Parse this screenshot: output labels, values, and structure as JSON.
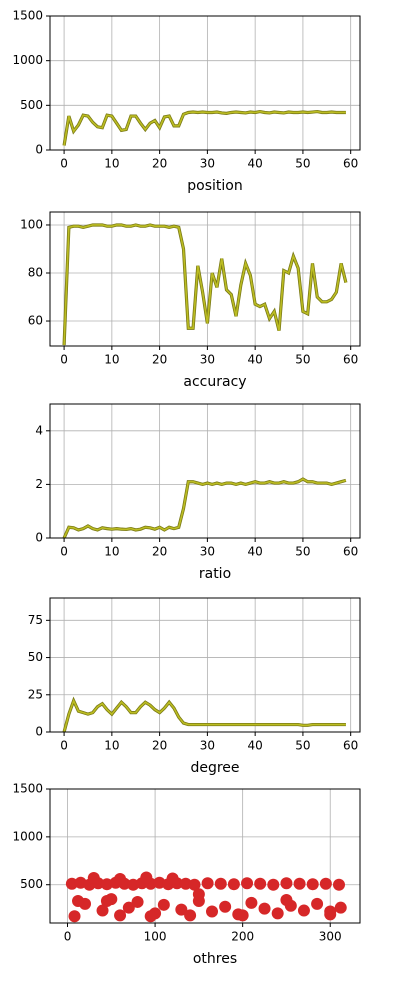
{
  "chart_data": [
    {
      "type": "line",
      "xlabel": "position",
      "color": "#bcbd22",
      "grid": true,
      "x": [
        0,
        1,
        2,
        3,
        4,
        5,
        6,
        7,
        8,
        9,
        10,
        11,
        12,
        13,
        14,
        15,
        16,
        17,
        18,
        19,
        20,
        21,
        22,
        23,
        24,
        25,
        26,
        27,
        28,
        29,
        30,
        31,
        32,
        33,
        34,
        35,
        36,
        37,
        38,
        39,
        40,
        41,
        42,
        43,
        44,
        45,
        46,
        47,
        48,
        49,
        50,
        51,
        52,
        53,
        54,
        55,
        56,
        57,
        58,
        59
      ],
      "values": [
        50,
        380,
        210,
        280,
        390,
        380,
        310,
        260,
        250,
        390,
        380,
        300,
        220,
        230,
        380,
        380,
        300,
        230,
        300,
        330,
        250,
        370,
        380,
        270,
        270,
        400,
        420,
        425,
        420,
        425,
        420,
        420,
        425,
        415,
        410,
        420,
        425,
        420,
        415,
        425,
        420,
        430,
        420,
        415,
        425,
        420,
        415,
        425,
        420,
        420,
        425,
        420,
        425,
        430,
        420,
        420,
        425,
        420,
        420,
        420
      ],
      "xlim": [
        -2.95,
        61.95
      ],
      "xticks": [
        0,
        10,
        20,
        30,
        40,
        50,
        60
      ],
      "ylim": [
        0,
        1500
      ],
      "yticks": [
        0,
        500,
        1000,
        1500
      ]
    },
    {
      "type": "line",
      "xlabel": "accuracy",
      "color": "#bcbd22",
      "grid": true,
      "x": [
        0,
        1,
        2,
        3,
        4,
        5,
        6,
        7,
        8,
        9,
        10,
        11,
        12,
        13,
        14,
        15,
        16,
        17,
        18,
        19,
        20,
        21,
        22,
        23,
        24,
        25,
        26,
        27,
        28,
        29,
        30,
        31,
        32,
        33,
        34,
        35,
        36,
        37,
        38,
        39,
        40,
        41,
        42,
        43,
        44,
        45,
        46,
        47,
        48,
        49,
        50,
        51,
        52,
        53,
        54,
        55,
        56,
        57,
        58,
        59
      ],
      "values": [
        50,
        99,
        99.5,
        99.5,
        99,
        99.5,
        100,
        100,
        100,
        99.5,
        99.5,
        100,
        100,
        99.5,
        99.5,
        100,
        99.5,
        99.5,
        100,
        99.5,
        99.5,
        99.5,
        99,
        99.5,
        99,
        90,
        57,
        57,
        83,
        72,
        59,
        80,
        74,
        86,
        73,
        71,
        62,
        75,
        84,
        79,
        67,
        66,
        67,
        61,
        64,
        56,
        81,
        80,
        87,
        82,
        64,
        63,
        84,
        70,
        68,
        68,
        69,
        72,
        84,
        76
      ],
      "xlim": [
        -2.95,
        61.95
      ],
      "xticks": [
        0,
        10,
        20,
        30,
        40,
        50,
        60
      ],
      "ylim": [
        49.6,
        105.4
      ],
      "yticks": [
        60,
        80,
        100
      ]
    },
    {
      "type": "line",
      "xlabel": "ratio",
      "color": "#bcbd22",
      "grid": true,
      "x": [
        0,
        1,
        2,
        3,
        4,
        5,
        6,
        7,
        8,
        9,
        10,
        11,
        12,
        13,
        14,
        15,
        16,
        17,
        18,
        19,
        20,
        21,
        22,
        23,
        24,
        25,
        26,
        27,
        28,
        29,
        30,
        31,
        32,
        33,
        34,
        35,
        36,
        37,
        38,
        39,
        40,
        41,
        42,
        43,
        44,
        45,
        46,
        47,
        48,
        49,
        50,
        51,
        52,
        53,
        54,
        55,
        56,
        57,
        58,
        59
      ],
      "values": [
        0,
        0.4,
        0.38,
        0.3,
        0.35,
        0.45,
        0.35,
        0.3,
        0.38,
        0.35,
        0.33,
        0.35,
        0.33,
        0.32,
        0.35,
        0.3,
        0.33,
        0.4,
        0.38,
        0.33,
        0.4,
        0.3,
        0.4,
        0.35,
        0.4,
        1.1,
        2.1,
        2.1,
        2.05,
        2.0,
        2.05,
        2.0,
        2.05,
        2.0,
        2.05,
        2.05,
        2.0,
        2.05,
        2.0,
        2.05,
        2.1,
        2.05,
        2.05,
        2.1,
        2.05,
        2.05,
        2.1,
        2.05,
        2.05,
        2.1,
        2.2,
        2.1,
        2.1,
        2.05,
        2.05,
        2.05,
        2.0,
        2.05,
        2.1,
        2.15
      ],
      "xlim": [
        -2.95,
        61.95
      ],
      "xticks": [
        0,
        10,
        20,
        30,
        40,
        50,
        60
      ],
      "ylim": [
        0,
        5
      ],
      "yticks": [
        0,
        2,
        4
      ]
    },
    {
      "type": "line",
      "xlabel": "degree",
      "color": "#bcbd22",
      "grid": true,
      "x": [
        0,
        1,
        2,
        3,
        4,
        5,
        6,
        7,
        8,
        9,
        10,
        11,
        12,
        13,
        14,
        15,
        16,
        17,
        18,
        19,
        20,
        21,
        22,
        23,
        24,
        25,
        26,
        27,
        28,
        29,
        30,
        31,
        32,
        33,
        34,
        35,
        36,
        37,
        38,
        39,
        40,
        41,
        42,
        43,
        44,
        45,
        46,
        47,
        48,
        49,
        50,
        51,
        52,
        53,
        54,
        55,
        56,
        57,
        58,
        59
      ],
      "values": [
        0,
        12,
        21,
        14,
        13,
        12,
        13,
        17,
        19,
        15,
        12,
        16,
        20,
        17,
        13,
        13,
        17,
        20,
        18,
        15,
        13,
        16,
        20,
        16,
        10,
        6,
        5,
        5,
        5,
        5,
        5,
        5,
        5,
        5,
        5,
        5,
        5,
        5,
        5,
        5,
        5,
        5,
        5,
        5,
        5,
        5,
        5,
        5,
        5,
        5,
        4.5,
        4.5,
        5,
        5,
        5,
        5,
        5,
        5,
        5,
        5
      ],
      "xlim": [
        -2.95,
        61.95
      ],
      "xticks": [
        0,
        10,
        20,
        30,
        40,
        50,
        60
      ],
      "ylim": [
        0,
        90
      ],
      "yticks": [
        0,
        25,
        50,
        75
      ]
    },
    {
      "type": "scatter",
      "xlabel": "othres",
      "color": "#d62728",
      "grid": true,
      "x": [
        5,
        15,
        25,
        35,
        45,
        55,
        65,
        75,
        85,
        95,
        105,
        115,
        125,
        135,
        145,
        160,
        175,
        190,
        205,
        220,
        235,
        250,
        265,
        280,
        295,
        310,
        30,
        60,
        90,
        120,
        8,
        20,
        40,
        50,
        60,
        70,
        80,
        100,
        110,
        130,
        140,
        150,
        165,
        180,
        195,
        210,
        225,
        240,
        255,
        270,
        285,
        300,
        312,
        45,
        95,
        150,
        200,
        250,
        300,
        12
      ],
      "values": [
        510,
        520,
        500,
        515,
        505,
        520,
        510,
        500,
        515,
        510,
        520,
        505,
        515,
        510,
        500,
        515,
        510,
        505,
        515,
        510,
        500,
        515,
        510,
        505,
        510,
        500,
        570,
        560,
        575,
        565,
        170,
        300,
        230,
        350,
        180,
        260,
        320,
        200,
        290,
        240,
        180,
        330,
        220,
        270,
        190,
        310,
        250,
        200,
        280,
        230,
        300,
        190,
        260,
        330,
        170,
        400,
        180,
        340,
        220,
        330
      ],
      "xlim": [
        -20,
        334
      ],
      "xticks": [
        0,
        100,
        200,
        300
      ],
      "ylim": [
        100,
        1500
      ],
      "yticks": [
        500,
        1000,
        1500
      ]
    }
  ]
}
